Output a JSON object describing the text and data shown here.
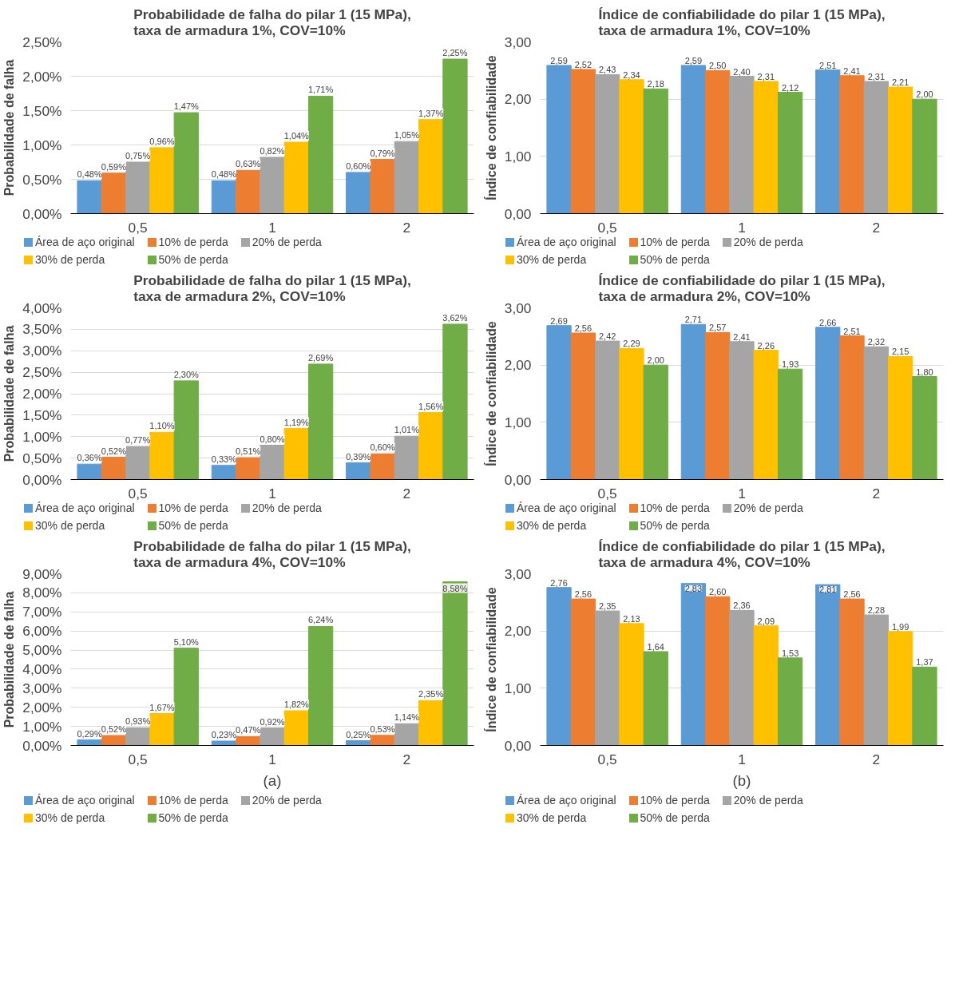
{
  "chart_data": [
    {
      "type": "bar",
      "title": "Probabilidade de falha do pilar 1 (15 MPa),\ntaxa de armadura 1%, COV=10%",
      "ylabel": "Probabilidade de falha",
      "categories": [
        "0,5",
        "1",
        "2"
      ],
      "ylim": [
        0,
        2.5
      ],
      "yticks": [
        {
          "value": 0,
          "label": "0,00%"
        },
        {
          "value": 0.5,
          "label": "0,50%"
        },
        {
          "value": 1,
          "label": "1,00%"
        },
        {
          "value": 1.5,
          "label": "1,50%"
        },
        {
          "value": 2,
          "label": "2,00%"
        },
        {
          "value": 2.5,
          "label": "2,50%"
        }
      ],
      "grid": "y",
      "legend": "bottom",
      "series": [
        {
          "name": "Área de aço original",
          "color": "#5b9bd5",
          "values": [
            0.48,
            0.48,
            0.6
          ],
          "value_labels": [
            "0,48%",
            "0,48%",
            "0,60%"
          ]
        },
        {
          "name": "10% de perda",
          "color": "#ed7d31",
          "values": [
            0.59,
            0.63,
            0.79
          ],
          "value_labels": [
            "0,59%",
            "0,63%",
            "0,79%"
          ]
        },
        {
          "name": "20% de perda",
          "color": "#a5a5a5",
          "values": [
            0.75,
            0.82,
            1.05
          ],
          "value_labels": [
            "0,75%",
            "0,82%",
            "1,05%"
          ]
        },
        {
          "name": "30% de perda",
          "color": "#ffc000",
          "values": [
            0.96,
            1.04,
            1.37
          ],
          "value_labels": [
            "0,96%",
            "1,04%",
            "1,37%"
          ]
        },
        {
          "name": "50% de perda",
          "color": "#70ad47",
          "values": [
            1.47,
            1.71,
            2.25
          ],
          "value_labels": [
            "1,47%",
            "1,71%",
            "2,25%"
          ]
        }
      ]
    },
    {
      "type": "bar",
      "title": "Índice de confiabilidade do pilar 1 (15 MPa),\ntaxa de armadura 1%, COV=10%",
      "ylabel": "Índice de confiabilidade",
      "categories": [
        "0,5",
        "1",
        "2"
      ],
      "ylim": [
        0,
        3
      ],
      "yticks": [
        {
          "value": 0,
          "label": "0,00"
        },
        {
          "value": 1,
          "label": "1,00"
        },
        {
          "value": 2,
          "label": "2,00"
        },
        {
          "value": 3,
          "label": "3,00"
        }
      ],
      "grid": "y",
      "legend": "bottom",
      "series": [
        {
          "name": "Área de aço original",
          "color": "#5b9bd5",
          "values": [
            2.59,
            2.59,
            2.51
          ],
          "value_labels": [
            "2,59",
            "2,59",
            "2,51"
          ]
        },
        {
          "name": "10% de perda",
          "color": "#ed7d31",
          "values": [
            2.52,
            2.5,
            2.41
          ],
          "value_labels": [
            "2,52",
            "2,50",
            "2,41"
          ]
        },
        {
          "name": "20% de perda",
          "color": "#a5a5a5",
          "values": [
            2.43,
            2.4,
            2.31
          ],
          "value_labels": [
            "2,43",
            "2,40",
            "2,31"
          ]
        },
        {
          "name": "30% de perda",
          "color": "#ffc000",
          "values": [
            2.34,
            2.31,
            2.21
          ],
          "value_labels": [
            "2,34",
            "2,31",
            "2,21"
          ]
        },
        {
          "name": "50% de perda",
          "color": "#70ad47",
          "values": [
            2.18,
            2.12,
            2.0
          ],
          "value_labels": [
            "2,18",
            "2,12",
            "2,00"
          ]
        }
      ]
    },
    {
      "type": "bar",
      "title": "Probabilidade de falha do pilar 1 (15 MPa),\ntaxa de armadura 2%, COV=10%",
      "ylabel": "Probabilidade de falha",
      "categories": [
        "0,5",
        "1",
        "2"
      ],
      "ylim": [
        0,
        4
      ],
      "yticks": [
        {
          "value": 0,
          "label": "0,00%"
        },
        {
          "value": 0.5,
          "label": "0,50%"
        },
        {
          "value": 1,
          "label": "1,00%"
        },
        {
          "value": 1.5,
          "label": "1,50%"
        },
        {
          "value": 2,
          "label": "2,00%"
        },
        {
          "value": 2.5,
          "label": "2,50%"
        },
        {
          "value": 3,
          "label": "3,00%"
        },
        {
          "value": 3.5,
          "label": "3,50%"
        },
        {
          "value": 4,
          "label": "4,00%"
        }
      ],
      "grid": "y",
      "legend": "bottom",
      "series": [
        {
          "name": "Área de aço original",
          "color": "#5b9bd5",
          "values": [
            0.36,
            0.33,
            0.39
          ],
          "value_labels": [
            "0,36%",
            "0,33%",
            "0,39%"
          ]
        },
        {
          "name": "10% de perda",
          "color": "#ed7d31",
          "values": [
            0.52,
            0.51,
            0.6
          ],
          "value_labels": [
            "0,52%",
            "0,51%",
            "0,60%"
          ]
        },
        {
          "name": "20% de perda",
          "color": "#a5a5a5",
          "values": [
            0.77,
            0.8,
            1.01
          ],
          "value_labels": [
            "0,77%",
            "0,80%",
            "1,01%"
          ]
        },
        {
          "name": "30% de perda",
          "color": "#ffc000",
          "values": [
            1.1,
            1.19,
            1.56
          ],
          "value_labels": [
            "1,10%",
            "1,19%",
            "1,56%"
          ]
        },
        {
          "name": "50% de perda",
          "color": "#70ad47",
          "values": [
            2.3,
            2.69,
            3.62
          ],
          "value_labels": [
            "2,30%",
            "2,69%",
            "3,62%"
          ]
        }
      ]
    },
    {
      "type": "bar",
      "title": "Índice de confiabilidade do pilar 1 (15 MPa),\ntaxa de armadura 2%, COV=10%",
      "ylabel": "Índice de confiabilidade",
      "categories": [
        "0,5",
        "1",
        "2"
      ],
      "ylim": [
        0,
        3
      ],
      "yticks": [
        {
          "value": 0,
          "label": "0,00"
        },
        {
          "value": 1,
          "label": "1,00"
        },
        {
          "value": 2,
          "label": "2,00"
        },
        {
          "value": 3,
          "label": "3,00"
        }
      ],
      "grid": "y",
      "legend": "bottom",
      "series": [
        {
          "name": "Área de aço original",
          "color": "#5b9bd5",
          "values": [
            2.69,
            2.71,
            2.66
          ],
          "value_labels": [
            "2,69",
            "2,71",
            "2,66"
          ]
        },
        {
          "name": "10% de perda",
          "color": "#ed7d31",
          "values": [
            2.56,
            2.57,
            2.51
          ],
          "value_labels": [
            "2,56",
            "2,57",
            "2,51"
          ]
        },
        {
          "name": "20% de perda",
          "color": "#a5a5a5",
          "values": [
            2.42,
            2.41,
            2.32
          ],
          "value_labels": [
            "2,42",
            "2,41",
            "2,32"
          ]
        },
        {
          "name": "30% de perda",
          "color": "#ffc000",
          "values": [
            2.29,
            2.26,
            2.15
          ],
          "value_labels": [
            "2,29",
            "2,26",
            "2,15"
          ]
        },
        {
          "name": "50% de perda",
          "color": "#70ad47",
          "values": [
            2.0,
            1.93,
            1.8
          ],
          "value_labels": [
            "2,00",
            "1,93",
            "1,80"
          ]
        }
      ]
    },
    {
      "type": "bar",
      "title": "Probabilidade de falha do pilar 1 (15 MPa),\ntaxa de armadura 4%, COV=10%",
      "ylabel": "Probabilidade de falha",
      "categories": [
        "0,5",
        "1",
        "2"
      ],
      "ylim": [
        0,
        9
      ],
      "yticks": [
        {
          "value": 0,
          "label": "0,00%"
        },
        {
          "value": 1,
          "label": "1,00%"
        },
        {
          "value": 2,
          "label": "2,00%"
        },
        {
          "value": 3,
          "label": "3,00%"
        },
        {
          "value": 4,
          "label": "4,00%"
        },
        {
          "value": 5,
          "label": "5,00%"
        },
        {
          "value": 6,
          "label": "6,00%"
        },
        {
          "value": 7,
          "label": "7,00%"
        },
        {
          "value": 8,
          "label": "8,00%"
        },
        {
          "value": 9,
          "label": "9,00%"
        }
      ],
      "grid": "y",
      "legend": "bottom",
      "annotations": [
        "(a)"
      ],
      "series": [
        {
          "name": "Área de aço original",
          "color": "#5b9bd5",
          "values": [
            0.29,
            0.23,
            0.25
          ],
          "value_labels": [
            "0,29%",
            "0,23%",
            "0,25%"
          ]
        },
        {
          "name": "10% de perda",
          "color": "#ed7d31",
          "values": [
            0.52,
            0.47,
            0.53
          ],
          "value_labels": [
            "0,52%",
            "0,47%",
            "0,53%"
          ]
        },
        {
          "name": "20% de perda",
          "color": "#a5a5a5",
          "values": [
            0.93,
            0.92,
            1.14
          ],
          "value_labels": [
            "0,93%",
            "0,92%",
            "1,14%"
          ]
        },
        {
          "name": "30% de perda",
          "color": "#ffc000",
          "values": [
            1.67,
            1.82,
            2.35
          ],
          "value_labels": [
            "1,67%",
            "1,82%",
            "2,35%"
          ]
        },
        {
          "name": "50% de perda",
          "color": "#70ad47",
          "values": [
            5.1,
            6.24,
            8.58
          ],
          "value_labels": [
            "5,10%",
            "6,24%",
            "8,58%"
          ]
        }
      ]
    },
    {
      "type": "bar",
      "title": "Índice de confiabilidade do pilar 1 (15 MPa),\ntaxa de armadura 4%, COV=10%",
      "ylabel": "Índice de confiabilidade",
      "categories": [
        "0,5",
        "1",
        "2"
      ],
      "ylim": [
        0,
        3
      ],
      "yticks": [
        {
          "value": 0,
          "label": "0,00"
        },
        {
          "value": 1,
          "label": "1,00"
        },
        {
          "value": 2,
          "label": "2,00"
        },
        {
          "value": 3,
          "label": "3,00"
        }
      ],
      "grid": "y",
      "legend": "bottom",
      "annotations": [
        "(b)"
      ],
      "series": [
        {
          "name": "Área de aço original",
          "color": "#5b9bd5",
          "values": [
            2.76,
            2.83,
            2.81
          ],
          "value_labels": [
            "2,76",
            "2,83",
            "2,81"
          ]
        },
        {
          "name": "10% de perda",
          "color": "#ed7d31",
          "values": [
            2.56,
            2.6,
            2.56
          ],
          "value_labels": [
            "2,56",
            "2,60",
            "2,56"
          ]
        },
        {
          "name": "20% de perda",
          "color": "#a5a5a5",
          "values": [
            2.35,
            2.36,
            2.28
          ],
          "value_labels": [
            "2,35",
            "2,36",
            "2,28"
          ]
        },
        {
          "name": "30% de perda",
          "color": "#ffc000",
          "values": [
            2.13,
            2.09,
            1.99
          ],
          "value_labels": [
            "2,13",
            "2,09",
            "1,99"
          ]
        },
        {
          "name": "50% de perda",
          "color": "#70ad47",
          "values": [
            1.64,
            1.53,
            1.37
          ],
          "value_labels": [
            "1,64",
            "1,53",
            "1,37"
          ]
        }
      ]
    }
  ]
}
